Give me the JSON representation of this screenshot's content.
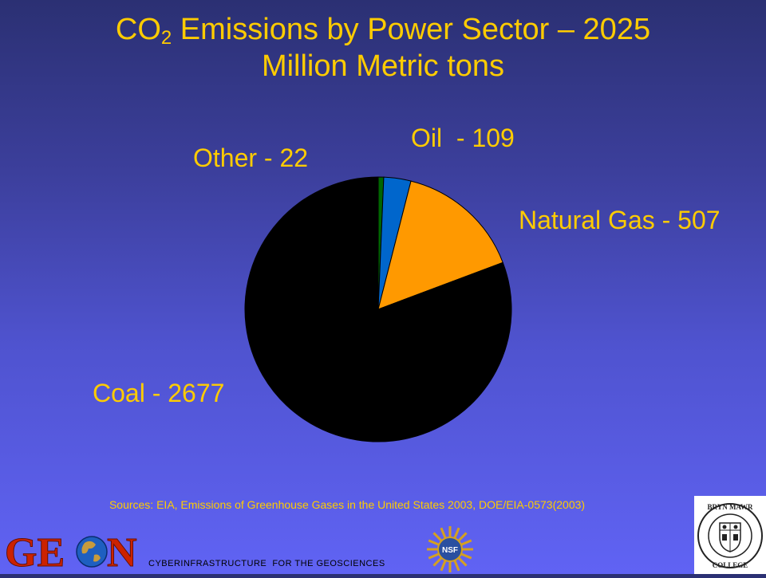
{
  "title": {
    "line1_prefix": "CO",
    "line1_sub": "2",
    "line1_rest": " Emissions by Power Sector – 2025",
    "line2": "Million Metric tons"
  },
  "labels": {
    "other": "Other - 22",
    "oil": "Oil  - 109",
    "gas": "Natural Gas - 507",
    "coal": "Coal - 2677"
  },
  "sources": "Sources: EIA, Emissions of Greenhouse Gases in the United States 2003, DOE/EIA-0573(2003)",
  "footer": {
    "tagline": "CYBERINFRASTRUCTURE  FOR THE GEOSCIENCES",
    "geon_logo_text": "GEON",
    "nsf_logo_text": "NSF",
    "bmc_logo_text": "BRYN MAWR COLLEGE"
  },
  "chart_data": {
    "type": "pie",
    "title": "CO2 Emissions by Power Sector – 2025 Million Metric tons",
    "categories": [
      "Other",
      "Oil",
      "Natural Gas",
      "Coal"
    ],
    "values": [
      22,
      109,
      507,
      2677
    ],
    "colors": [
      "#006600",
      "#0066cc",
      "#ff9900",
      "#000000"
    ],
    "start": "top, clockwise"
  }
}
